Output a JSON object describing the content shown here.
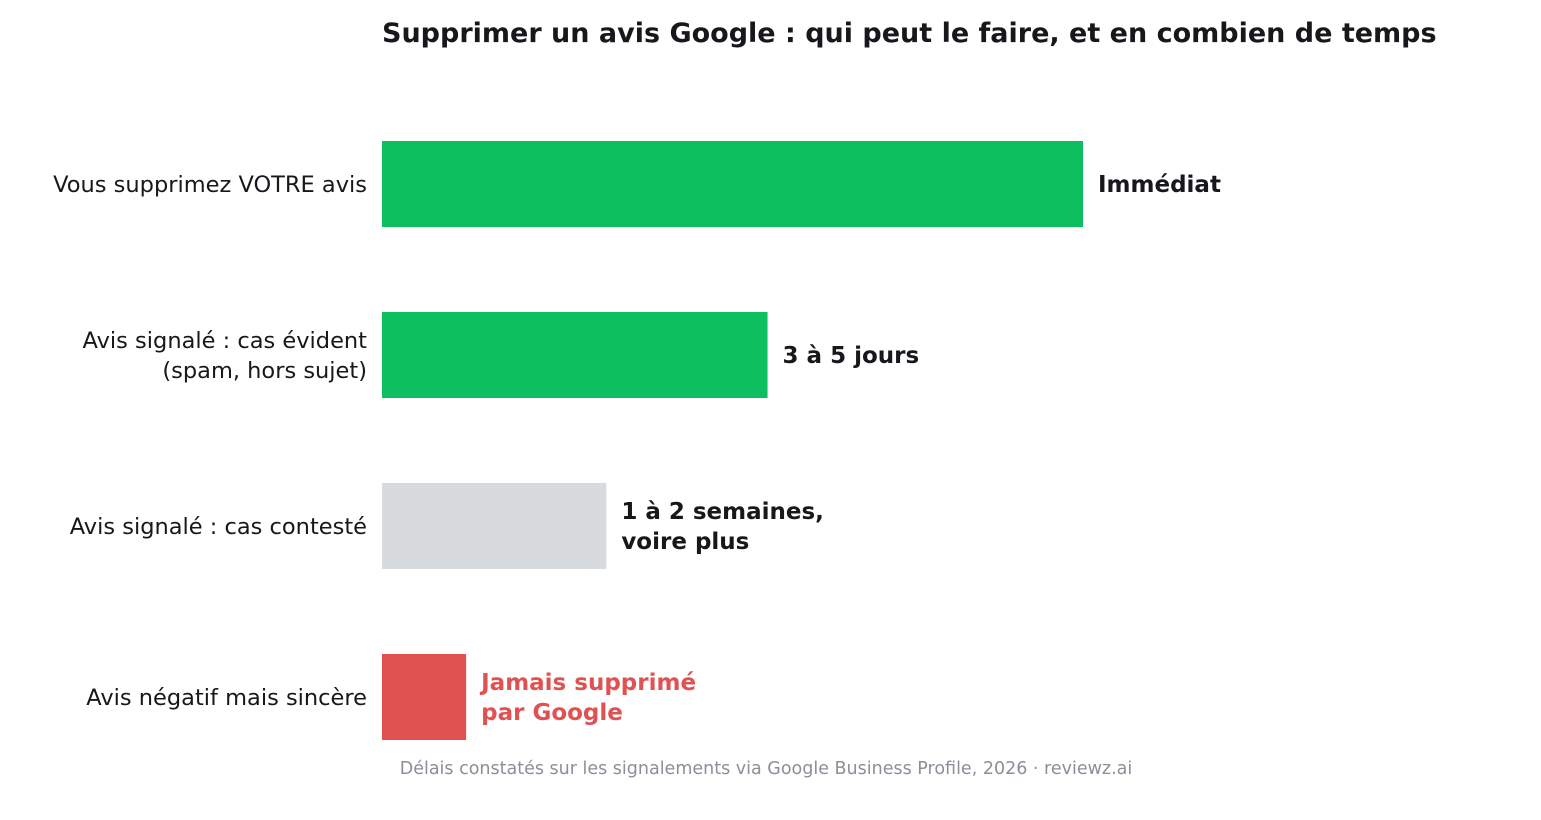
{
  "chart_data": {
    "type": "bar",
    "orientation": "horizontal",
    "title": "Supprimer un avis Google : qui peut le faire, et en combien de temps",
    "note": "Délais constatés sur les signalements via Google Business Profile, 2026 · reviewz.ai",
    "xlabel": "",
    "ylabel": "",
    "grid": false,
    "legend": "none",
    "bars": [
      {
        "category": [
          "Vous supprimez VOTRE avis"
        ],
        "value": 1.0,
        "color": "#0dbf5e",
        "label": [
          "Immédiat"
        ],
        "label_color": "#16181c"
      },
      {
        "category": [
          "Avis signalé : cas évident",
          "(spam, hors sujet)"
        ],
        "value": 0.55,
        "color": "#0dbf5e",
        "label": [
          "3 à 5 jours"
        ],
        "label_color": "#16181c"
      },
      {
        "category": [
          "Avis signalé : cas contesté"
        ],
        "value": 0.32,
        "color": "#d8dbde",
        "label": [
          "1 à 2 semaines,",
          "voire plus"
        ],
        "label_color": "#16181c"
      },
      {
        "category": [
          "Avis négatif mais sincère"
        ],
        "value": 0.12,
        "color": "#e05252",
        "label": [
          "Jamais supprimé",
          "par Google"
        ],
        "label_color": "#e05252"
      }
    ]
  }
}
